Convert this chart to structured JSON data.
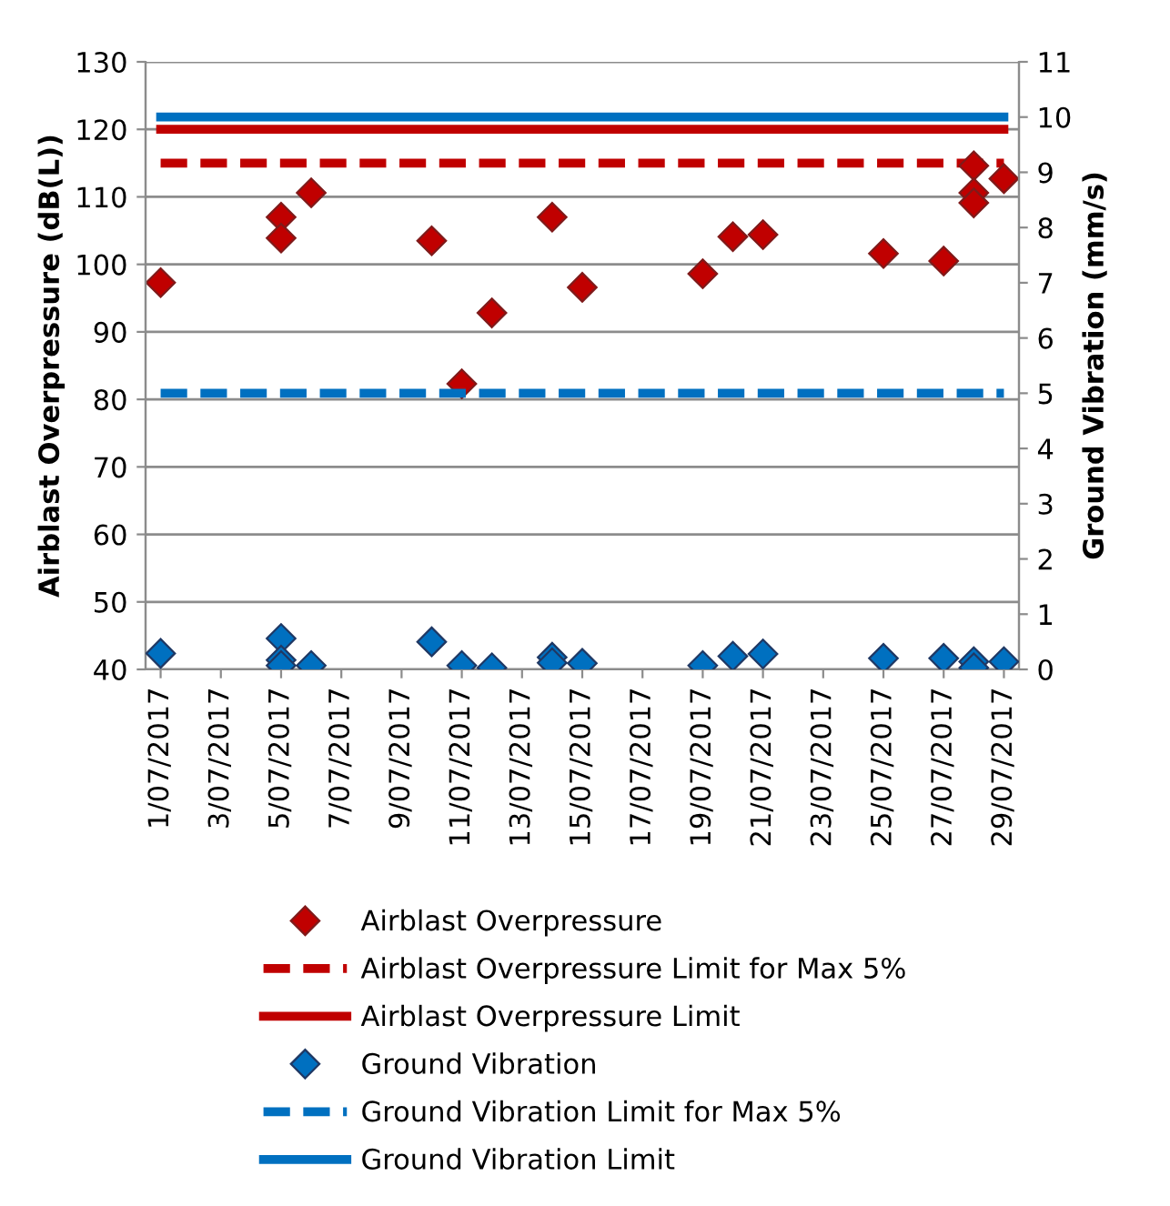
{
  "chart_data": {
    "type": "scatter",
    "ylabel": "Airblast Overpressure (dB(L))",
    "y2label": "Ground Vibration (mm/s)",
    "xlim": [
      "2017-06-30T12:00",
      "2017-07-29T12:00"
    ],
    "xticks": [
      {
        "value": "2017-07-01",
        "label": "1/07/2017"
      },
      {
        "value": "2017-07-03",
        "label": "3/07/2017"
      },
      {
        "value": "2017-07-05",
        "label": "5/07/2017"
      },
      {
        "value": "2017-07-07",
        "label": "7/07/2017"
      },
      {
        "value": "2017-07-09",
        "label": "9/07/2017"
      },
      {
        "value": "2017-07-11",
        "label": "11/07/2017"
      },
      {
        "value": "2017-07-13",
        "label": "13/07/2017"
      },
      {
        "value": "2017-07-15",
        "label": "15/07/2017"
      },
      {
        "value": "2017-07-17",
        "label": "17/07/2017"
      },
      {
        "value": "2017-07-19",
        "label": "19/07/2017"
      },
      {
        "value": "2017-07-21",
        "label": "21/07/2017"
      },
      {
        "value": "2017-07-23",
        "label": "23/07/2017"
      },
      {
        "value": "2017-07-25",
        "label": "25/07/2017"
      },
      {
        "value": "2017-07-27",
        "label": "27/07/2017"
      },
      {
        "value": "2017-07-29",
        "label": "29/07/2017"
      }
    ],
    "ylim": [
      40,
      130
    ],
    "yticks": [
      40,
      50,
      60,
      70,
      80,
      90,
      100,
      110,
      120,
      130
    ],
    "y2lim": [
      0,
      11
    ],
    "y2ticks": [
      0,
      1,
      2,
      3,
      4,
      5,
      6,
      7,
      8,
      9,
      10,
      11
    ],
    "grid": "y",
    "legend": "bottom",
    "series": [
      {
        "name": "Airblast Overpressure",
        "marker": "diamond",
        "color": "#c00000",
        "x": [
          "2017-07-01",
          "2017-07-05",
          "2017-07-05",
          "2017-07-06",
          "2017-07-10",
          "2017-07-11",
          "2017-07-12",
          "2017-07-14",
          "2017-07-15",
          "2017-07-19",
          "2017-07-20",
          "2017-07-21",
          "2017-07-25",
          "2017-07-27",
          "2017-07-28",
          "2017-07-28",
          "2017-07-28",
          "2017-07-29"
        ],
        "values": [
          97.3,
          107.0,
          103.9,
          110.6,
          103.5,
          82.3,
          92.8,
          107.0,
          96.6,
          98.6,
          104.1,
          104.4,
          101.6,
          100.5,
          114.6,
          110.6,
          109.1,
          112.7
        ]
      },
      {
        "name": "Airblast Overpressure Limit for Max 5%",
        "type": "line",
        "line_style": "dashed",
        "color": "#c00000",
        "x": [
          "2017-07-01",
          "2017-07-29"
        ],
        "values": [
          115,
          115
        ]
      },
      {
        "name": "Airblast Overpressure Limit",
        "type": "line",
        "line_style": "solid",
        "color": "#c00000",
        "x": [
          "2017-07-01",
          "2017-07-29"
        ],
        "values": [
          120,
          120
        ]
      },
      {
        "name": "Ground Vibration",
        "marker": "diamond",
        "axis": "y2",
        "color": "#0070c0",
        "x": [
          "2017-07-01",
          "2017-07-05",
          "2017-07-05",
          "2017-07-05",
          "2017-07-06",
          "2017-07-10",
          "2017-07-11",
          "2017-07-12",
          "2017-07-14",
          "2017-07-14",
          "2017-07-15",
          "2017-07-19",
          "2017-07-20",
          "2017-07-21",
          "2017-07-25",
          "2017-07-27",
          "2017-07-28",
          "2017-07-28",
          "2017-07-29"
        ],
        "values": [
          0.29,
          0.56,
          0.17,
          0.07,
          0.07,
          0.5,
          0.07,
          0.03,
          0.22,
          0.12,
          0.11,
          0.07,
          0.24,
          0.28,
          0.2,
          0.2,
          0.14,
          0.03,
          0.14
        ]
      },
      {
        "name": "Ground Vibration Limit for Max 5%",
        "type": "line",
        "line_style": "dashed",
        "axis": "y2",
        "color": "#0070c0",
        "x": [
          "2017-07-01",
          "2017-07-29"
        ],
        "values": [
          5,
          5
        ]
      },
      {
        "name": "Ground Vibration Limit",
        "type": "line",
        "line_style": "solid",
        "axis": "y2",
        "color": "#0070c0",
        "x": [
          "2017-07-01",
          "2017-07-29"
        ],
        "values": [
          10,
          10
        ]
      }
    ]
  }
}
